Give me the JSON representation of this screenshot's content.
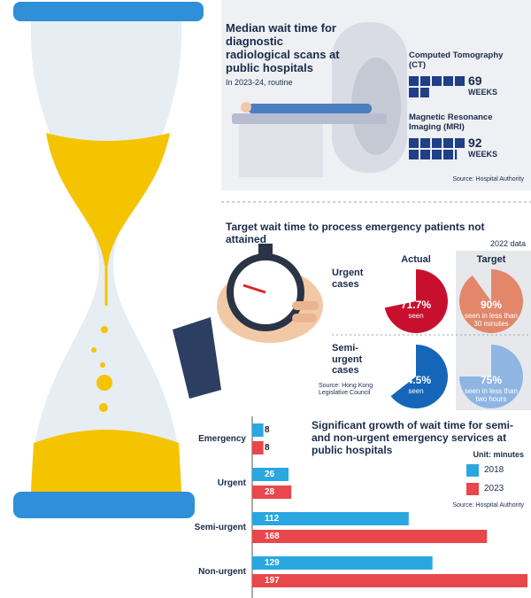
{
  "chart_data": [
    {
      "type": "waffle",
      "title": "Median wait time for diagnostic radiological scans at public hospitals",
      "subtitle": "In 2023-24, routine",
      "categories": [
        "Computed Tomography (CT)",
        "Magnetic Resonance Imaging (MRI)"
      ],
      "values": [
        69,
        92
      ],
      "unit": "WEEKS",
      "color": "#1f3f86",
      "source": "Source: Hospital Authority"
    },
    {
      "type": "pie",
      "title": "Target wait time to process emergency patients not attained",
      "note": "2022 data",
      "categories": [
        "Urgent cases",
        "Semi-urgent cases"
      ],
      "series": [
        {
          "name": "Actual",
          "colors": [
            "#c8102e",
            "#1565b8"
          ],
          "values": [
            71.7,
            64.5
          ],
          "value_labels": [
            "71.7%",
            "64.5%"
          ],
          "captions": [
            "seen",
            "seen"
          ]
        },
        {
          "name": "Target",
          "colors": [
            "#e2876a",
            "#8fb5e2"
          ],
          "values": [
            90,
            75
          ],
          "value_labels": [
            "90%",
            "75%"
          ],
          "captions": [
            "seen in less than 30 minutes",
            "seen in less than two hours"
          ]
        }
      ],
      "source": "Source: Hong Kong Legislative Council"
    },
    {
      "type": "hbar",
      "title": "Significant growth of wait time for semi- and non-urgent emergency services at public hospitals",
      "unit": "Unit: minutes",
      "categories": [
        "Emergency",
        "Urgent",
        "Semi-urgent",
        "Non-urgent"
      ],
      "series": [
        {
          "name": "2018",
          "color": "#2aa7e0",
          "values": [
            8,
            26,
            112,
            129
          ]
        },
        {
          "name": "2023",
          "color": "#e8474c",
          "values": [
            8,
            28,
            168,
            197
          ]
        }
      ],
      "source": "Source: Hospital Authority"
    }
  ]
}
